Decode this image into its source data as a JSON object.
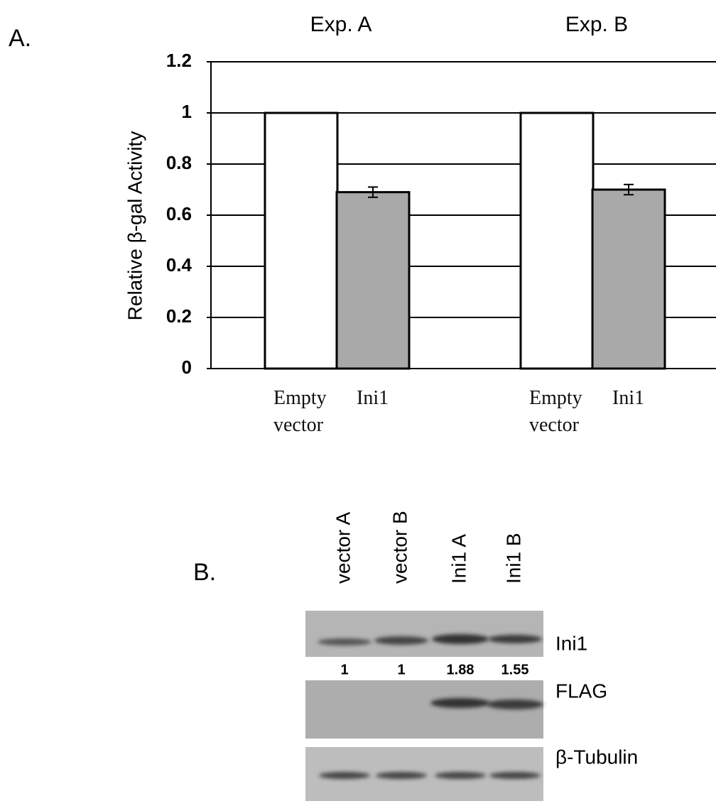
{
  "panel_a_label": "A.",
  "chart_data": {
    "type": "bar",
    "groups_position": "top",
    "categories": [
      "Exp. A",
      "Exp. B"
    ],
    "y_label": "Relative β-gal Activity",
    "series": [
      {
        "name": "Empty vector",
        "color": "#ffffff",
        "values": [
          1,
          1
        ]
      },
      {
        "name": "Ini1",
        "color": "#a9a9a9",
        "values": [
          0.69,
          0.7
        ],
        "errors": [
          0.02,
          0.02
        ]
      }
    ],
    "ylim": [
      0,
      1.2
    ],
    "yticks": [
      0,
      0.2,
      0.4,
      0.6,
      0.8,
      1,
      1.2
    ],
    "grid": true
  },
  "blot": {
    "panel_label": "B.",
    "lanes": [
      "vector A",
      "vector B",
      "Ini1 A",
      "Ini1 B"
    ],
    "rows": [
      "Ini1",
      "FLAG",
      "β-Tubulin"
    ],
    "quantification": [
      1,
      1,
      1.88,
      1.55
    ]
  }
}
